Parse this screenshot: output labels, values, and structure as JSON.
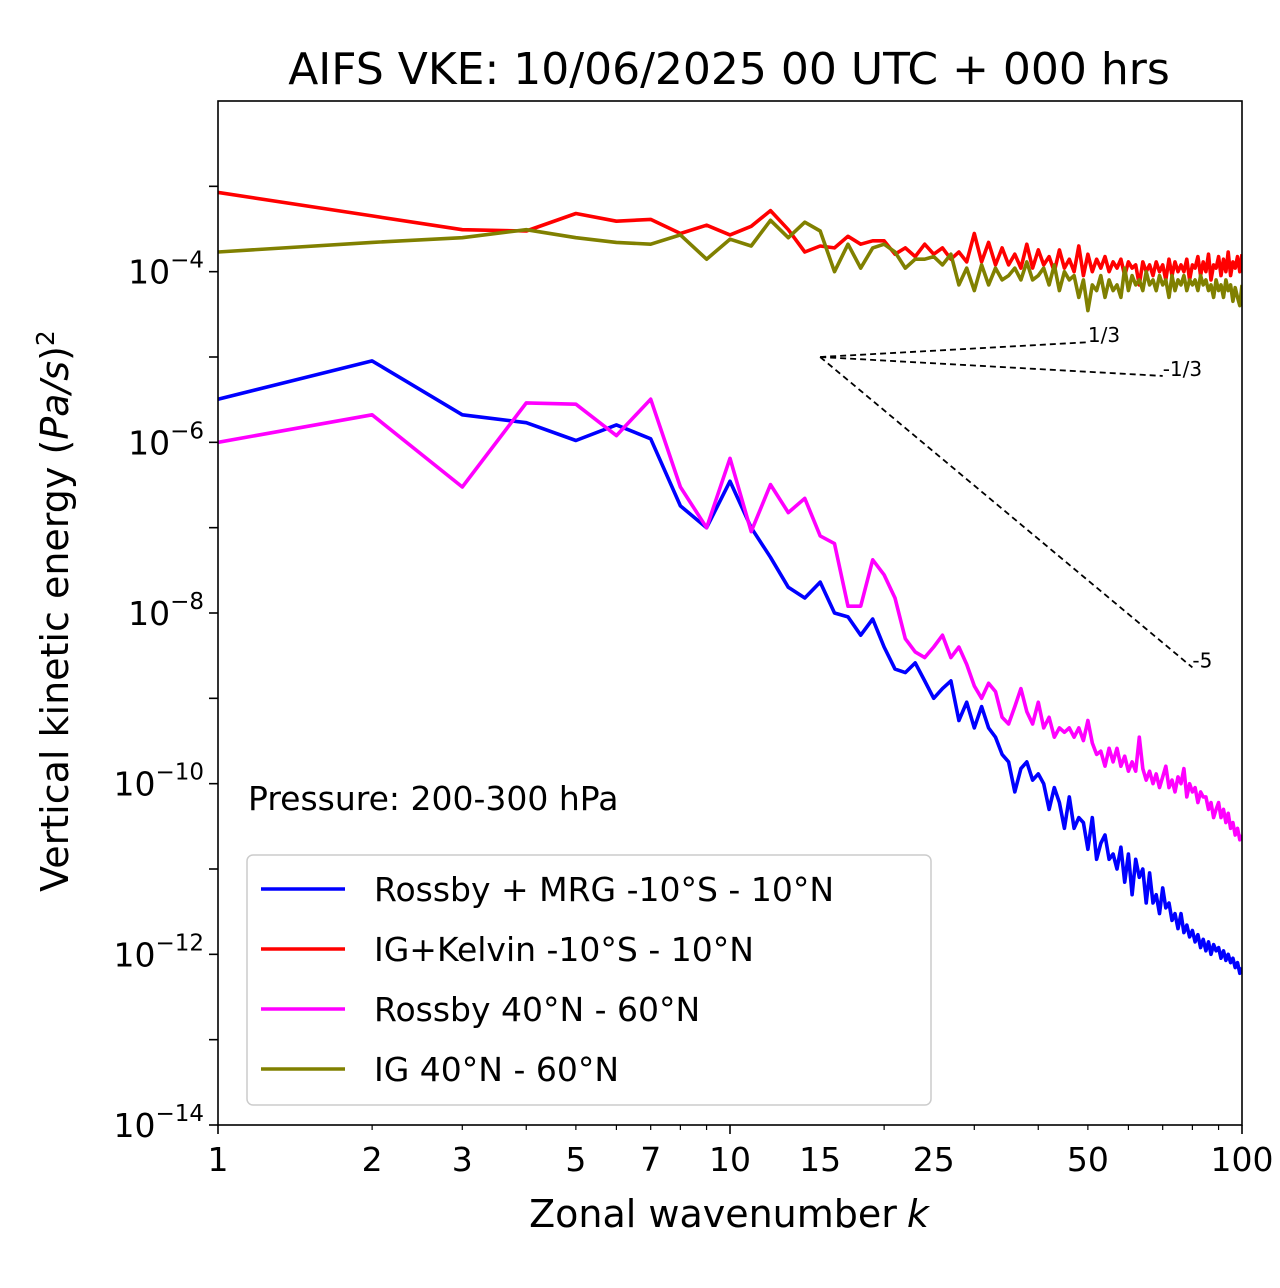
{
  "chart_data": {
    "type": "line",
    "title": "AIFS VKE: 10/06/2025 00 UTC + 000 hrs",
    "xlabel_text": "Zonal wavenumber",
    "xlabel_var": "k",
    "ylabel_text": "Vertical kinetic energy (",
    "ylabel_var": "Pa/s",
    "ylabel_close": ")",
    "ylabel_exp": "2",
    "x_scale": "log",
    "y_scale": "log",
    "xlim": [
      1,
      100
    ],
    "ylim": [
      1e-14,
      0.01
    ],
    "x_ticks": [
      1,
      2,
      3,
      5,
      7,
      10,
      15,
      25,
      50,
      100
    ],
    "x_tick_labels": [
      "1",
      "2",
      "3",
      "5",
      "7",
      "10",
      "15",
      "25",
      "50",
      "100"
    ],
    "y_ticks": [
      1e-14,
      1e-12,
      1e-10,
      1e-08,
      1e-06,
      0.0001
    ],
    "y_tick_labels": [
      {
        "base": "10",
        "exp": "−14"
      },
      {
        "base": "10",
        "exp": "−12"
      },
      {
        "base": "10",
        "exp": "−10"
      },
      {
        "base": "10",
        "exp": "−8"
      },
      {
        "base": "10",
        "exp": "−6"
      },
      {
        "base": "10",
        "exp": "−4"
      }
    ],
    "annotation": "Pressure: 200-300 hPa",
    "legend_position": "lower-left",
    "grid": false,
    "reference_lines": [
      {
        "label": "1/3",
        "x": [
          15,
          50
        ],
        "y": [
          1e-05,
          1.49e-05
        ]
      },
      {
        "label": "-1/3",
        "x": [
          15,
          70
        ],
        "y": [
          1e-05,
          6e-06
        ]
      },
      {
        "label": "-5",
        "x": [
          15,
          80
        ],
        "y": [
          1e-05,
          2.3e-09
        ]
      }
    ],
    "series": [
      {
        "name": "Rossby + MRG -10°S - 10°N",
        "color": "#0000ff",
        "x": [
          1,
          2,
          3,
          4,
          5,
          6,
          7,
          8,
          9,
          10,
          11,
          12,
          13,
          14,
          15,
          16,
          17,
          18,
          19,
          20,
          21,
          22,
          23,
          24,
          25,
          26,
          27,
          28,
          29,
          30,
          31,
          32,
          33,
          34,
          35,
          36,
          37,
          38,
          39,
          40,
          41,
          42,
          43,
          44,
          45,
          46,
          47,
          48,
          49,
          50,
          51,
          52,
          53,
          54,
          55,
          56,
          57,
          58,
          59,
          60,
          61,
          62,
          63,
          64,
          65,
          66,
          67,
          68,
          69,
          70,
          71,
          72,
          73,
          74,
          75,
          76,
          77,
          78,
          79,
          80,
          81,
          82,
          83,
          84,
          85,
          86,
          87,
          88,
          89,
          90,
          91,
          92,
          93,
          94,
          95,
          96,
          97,
          98,
          99,
          100
        ],
        "y": [
          3.2e-06,
          9e-06,
          2.1e-06,
          1.7e-06,
          1.05e-06,
          1.6e-06,
          1.1e-06,
          1.8e-07,
          1e-07,
          3.5e-07,
          1e-07,
          4.5e-08,
          2e-08,
          1.5e-08,
          2.3e-08,
          1e-08,
          9e-09,
          5.5e-09,
          8.5e-09,
          4e-09,
          2.2e-09,
          2e-09,
          2.6e-09,
          1.6e-09,
          1e-09,
          1.3e-09,
          1.6e-09,
          5.5e-10,
          9e-10,
          4.5e-10,
          8e-10,
          4.5e-10,
          3.5e-10,
          2.2e-10,
          1.8e-10,
          8e-11,
          1.5e-10,
          1.8e-10,
          1.1e-10,
          1.3e-10,
          1e-10,
          5e-11,
          9e-11,
          6e-11,
          3e-11,
          7e-11,
          3e-11,
          4e-11,
          3.5e-11,
          1.7e-11,
          4e-11,
          1.3e-11,
          2e-11,
          2.5e-11,
          1.3e-11,
          1.5e-11,
          1e-11,
          1.8e-11,
          7e-12,
          1.5e-11,
          5e-12,
          1.3e-11,
          8e-12,
          1e-11,
          4e-12,
          9e-12,
          4e-12,
          5e-12,
          3e-12,
          6e-12,
          3.5e-12,
          4e-12,
          2.5e-12,
          3e-12,
          2e-12,
          3e-12,
          1.8e-12,
          2.2e-12,
          1.6e-12,
          1.9e-12,
          1.4e-12,
          1.7e-12,
          1.2e-12,
          1.5e-12,
          1.1e-12,
          1.4e-12,
          1e-12,
          1.3e-12,
          1.1e-12,
          1.2e-12,
          9e-13,
          1.1e-12,
          8.5e-13,
          1e-12,
          8e-13,
          9e-13,
          7e-13,
          8e-13,
          6e-13,
          7e-13
        ]
      },
      {
        "name": "IG+Kelvin -10°S - 10°N",
        "color": "#ff0000",
        "x": [
          1,
          2,
          3,
          4,
          5,
          6,
          7,
          8,
          9,
          10,
          11,
          12,
          13,
          14,
          15,
          16,
          17,
          18,
          19,
          20,
          21,
          22,
          23,
          24,
          25,
          26,
          27,
          28,
          29,
          30,
          31,
          32,
          33,
          34,
          35,
          36,
          37,
          38,
          39,
          40,
          41,
          42,
          43,
          44,
          45,
          46,
          47,
          48,
          49,
          50,
          51,
          52,
          53,
          54,
          55,
          56,
          57,
          58,
          59,
          60,
          61,
          62,
          63,
          64,
          65,
          66,
          67,
          68,
          69,
          70,
          71,
          72,
          73,
          74,
          75,
          76,
          77,
          78,
          79,
          80,
          81,
          82,
          83,
          84,
          85,
          86,
          87,
          88,
          89,
          90,
          91,
          92,
          93,
          94,
          95,
          96,
          97,
          98,
          99,
          100
        ],
        "y": [
          0.00085,
          0.00045,
          0.00031,
          0.0003,
          0.00048,
          0.00039,
          0.00041,
          0.00028,
          0.00035,
          0.00027,
          0.00034,
          0.00052,
          0.00031,
          0.00017,
          0.0002,
          0.00019,
          0.00026,
          0.00021,
          0.00023,
          0.00023,
          0.00016,
          0.00019,
          0.00015,
          0.00021,
          0.00016,
          0.00019,
          0.00014,
          0.00017,
          0.00013,
          0.00028,
          0.00013,
          0.00022,
          0.00012,
          0.00019,
          0.00012,
          0.00016,
          0.00011,
          0.00021,
          0.00011,
          0.00018,
          0.00012,
          0.00015,
          0.0001,
          0.00018,
          0.00011,
          0.00014,
          0.0001,
          0.0002,
          9e-05,
          0.00016,
          0.0001,
          0.00014,
          0.00011,
          0.00015,
          0.0001,
          0.00013,
          0.00011,
          0.00014,
          9e-05,
          0.00013,
          0.00011,
          0.00012,
          7e-05,
          0.00013,
          0.0001,
          0.00012,
          9e-05,
          0.00013,
          0.0001,
          0.00012,
          8e-05,
          0.00014,
          9e-05,
          0.00013,
          0.0001,
          0.00012,
          0.0001,
          0.00014,
          8e-05,
          0.00012,
          0.00011,
          0.00015,
          9e-05,
          0.00013,
          0.0001,
          0.00016,
          8e-05,
          0.00012,
          0.00011,
          0.00015,
          9e-05,
          0.00014,
          0.0001,
          0.00017,
          9e-05,
          0.00013,
          0.00011,
          0.00015,
          0.0001,
          0.00016
        ]
      },
      {
        "name": "Rossby 40°N - 60°N",
        "color": "#ff00ff",
        "x": [
          1,
          2,
          3,
          4,
          5,
          6,
          7,
          8,
          9,
          10,
          11,
          12,
          13,
          14,
          15,
          16,
          17,
          18,
          19,
          20,
          21,
          22,
          23,
          24,
          25,
          26,
          27,
          28,
          29,
          30,
          31,
          32,
          33,
          34,
          35,
          36,
          37,
          38,
          39,
          40,
          41,
          42,
          43,
          44,
          45,
          46,
          47,
          48,
          49,
          50,
          51,
          52,
          53,
          54,
          55,
          56,
          57,
          58,
          59,
          60,
          61,
          62,
          63,
          64,
          65,
          66,
          67,
          68,
          69,
          70,
          71,
          72,
          73,
          74,
          75,
          76,
          77,
          78,
          79,
          80,
          81,
          82,
          83,
          84,
          85,
          86,
          87,
          88,
          89,
          90,
          91,
          92,
          93,
          94,
          95,
          96,
          97,
          98,
          99,
          100
        ],
        "y": [
          1e-06,
          2.1e-06,
          3e-07,
          2.9e-06,
          2.8e-06,
          1.2e-06,
          3.2e-06,
          3e-07,
          1e-07,
          6.5e-07,
          9e-08,
          3.2e-07,
          1.5e-07,
          2.2e-07,
          8e-08,
          6.5e-08,
          1.2e-08,
          1.2e-08,
          4.2e-08,
          2.8e-08,
          1.5e-08,
          5e-09,
          3.5e-09,
          3e-09,
          4e-09,
          5.5e-09,
          3e-09,
          4e-09,
          2.5e-09,
          1.4e-09,
          1e-09,
          1.5e-09,
          1.2e-09,
          6e-10,
          5e-10,
          8e-10,
          1.3e-09,
          7e-10,
          5e-10,
          9e-10,
          4.5e-10,
          6e-10,
          3.5e-10,
          4.5e-10,
          4e-10,
          4.5e-10,
          3.5e-10,
          4.5e-10,
          3.2e-10,
          5.5e-10,
          3e-10,
          2.2e-10,
          2.4e-10,
          1.6e-10,
          2.6e-10,
          1.8e-10,
          2.6e-10,
          1.6e-10,
          2.1e-10,
          1.4e-10,
          1.8e-10,
          1.4e-10,
          3.5e-10,
          1.5e-10,
          1.1e-10,
          1.4e-10,
          1e-10,
          1.3e-10,
          9e-11,
          1.2e-10,
          1.6e-10,
          9e-11,
          1.1e-10,
          8e-11,
          1.2e-10,
          1e-10,
          1.5e-10,
          7e-11,
          1e-10,
          8e-11,
          9e-11,
          6e-11,
          8e-11,
          7e-11,
          7e-11,
          5e-11,
          6e-11,
          4e-11,
          5e-11,
          6e-11,
          4e-11,
          5e-11,
          3.5e-11,
          4.5e-11,
          3e-11,
          3.5e-11,
          2.5e-11,
          3e-11,
          2.2e-11,
          2.5e-11
        ]
      },
      {
        "name": "IG 40°N - 60°N",
        "color": "#808000",
        "x": [
          1,
          2,
          3,
          4,
          5,
          6,
          7,
          8,
          9,
          10,
          11,
          12,
          13,
          14,
          15,
          16,
          17,
          18,
          19,
          20,
          21,
          22,
          23,
          24,
          25,
          26,
          27,
          28,
          29,
          30,
          31,
          32,
          33,
          34,
          35,
          36,
          37,
          38,
          39,
          40,
          41,
          42,
          43,
          44,
          45,
          46,
          47,
          48,
          49,
          50,
          51,
          52,
          53,
          54,
          55,
          56,
          57,
          58,
          59,
          60,
          61,
          62,
          63,
          64,
          65,
          66,
          67,
          68,
          69,
          70,
          71,
          72,
          73,
          74,
          75,
          76,
          77,
          78,
          79,
          80,
          81,
          82,
          83,
          84,
          85,
          86,
          87,
          88,
          89,
          90,
          91,
          92,
          93,
          94,
          95,
          96,
          97,
          98,
          99,
          100
        ],
        "y": [
          0.00017,
          0.00022,
          0.00025,
          0.00031,
          0.00025,
          0.00022,
          0.00021,
          0.00027,
          0.00014,
          0.00024,
          0.0002,
          0.0004,
          0.00025,
          0.00038,
          0.0003,
          0.0001,
          0.00021,
          0.00011,
          0.00019,
          0.00021,
          0.00017,
          0.00011,
          0.00014,
          0.00014,
          0.00015,
          0.00012,
          0.00016,
          7e-05,
          0.00011,
          6e-05,
          0.00012,
          7e-05,
          0.00011,
          8e-05,
          9e-05,
          0.00011,
          8e-05,
          0.00013,
          8e-05,
          9e-05,
          0.00011,
          7e-05,
          0.00012,
          6e-05,
          0.0001,
          8e-05,
          9e-05,
          5e-05,
          8e-05,
          3.5e-05,
          7e-05,
          6e-05,
          9e-05,
          5e-05,
          8e-05,
          6e-05,
          7e-05,
          5e-05,
          0.00011,
          6e-05,
          9e-05,
          7e-05,
          8e-05,
          6e-05,
          0.0001,
          7e-05,
          8e-05,
          6e-05,
          9e-05,
          7e-05,
          8e-05,
          5e-05,
          9e-05,
          6e-05,
          8e-05,
          7e-05,
          9e-05,
          6e-05,
          8e-05,
          7e-05,
          8e-05,
          6e-05,
          9e-05,
          7e-05,
          8e-05,
          6e-05,
          7e-05,
          5e-05,
          8e-05,
          6e-05,
          7e-05,
          5e-05,
          8e-05,
          6e-05,
          7e-05,
          4.5e-05,
          6.5e-05,
          5e-05,
          4e-05,
          7e-05
        ]
      }
    ]
  }
}
